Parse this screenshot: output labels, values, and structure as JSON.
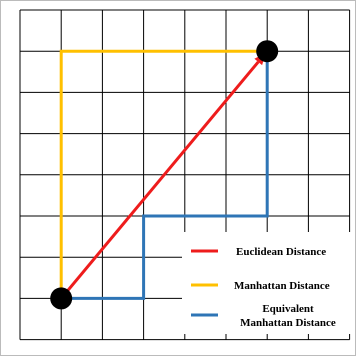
{
  "diagram": {
    "grid_cells": 8,
    "start_point": [
      0,
      0
    ],
    "end_point": [
      5,
      6
    ],
    "euclidean_path": [
      [
        0,
        0
      ],
      [
        5,
        6
      ]
    ],
    "manhattan_path": [
      [
        0,
        0
      ],
      [
        0,
        6
      ],
      [
        5,
        6
      ]
    ],
    "equivalent_manhattan_path": [
      [
        0,
        0
      ],
      [
        2,
        0
      ],
      [
        2,
        2
      ],
      [
        5,
        2
      ],
      [
        5,
        6
      ]
    ]
  },
  "legend": {
    "items": [
      {
        "label": "Euclidean Distance",
        "color": "#ee1c1c"
      },
      {
        "label": "Manhattan Distance",
        "color": "#ffc000"
      },
      {
        "label_lines": [
          "Equivalent",
          "Manhattan Distance"
        ],
        "color": "#2e75b6"
      }
    ]
  },
  "colors": {
    "grid": "#000000",
    "point": "#000000",
    "background": "#ffffff",
    "border": "#999999"
  }
}
